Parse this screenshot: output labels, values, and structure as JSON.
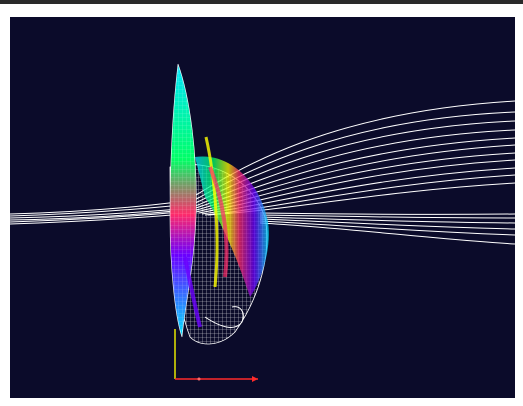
{
  "window": {
    "background": "#ffffff",
    "viewport_background": "#0b0b2a"
  },
  "scene": {
    "description_color_map": [
      "#00e5ff",
      "#00ff66",
      "#ffff00",
      "#ff2b6a",
      "#6a00ff",
      "#ffffff"
    ],
    "axes": {
      "x_color": "#ff2a2a",
      "y_color": "#e6e600",
      "origin_marker_color": "#ff6a6a"
    },
    "streamlines_color": "#ffffff",
    "mesh_color": "#ffffff"
  }
}
